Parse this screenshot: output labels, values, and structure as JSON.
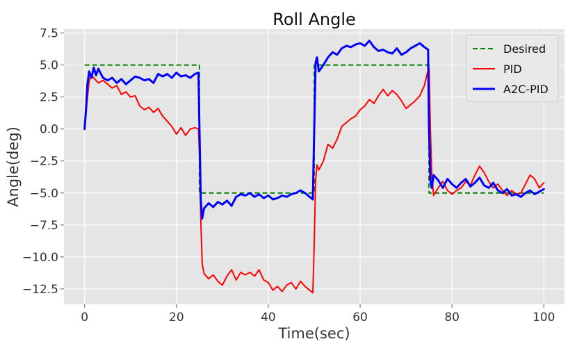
{
  "chart_data": {
    "type": "line",
    "title": "Roll Angle",
    "xlabel": "Time(sec)",
    "ylabel": "Angle(deg)",
    "xlim": [
      -4.5,
      104.5
    ],
    "ylim": [
      -13.7,
      7.8
    ],
    "xticks": [
      0,
      20,
      40,
      60,
      80,
      100
    ],
    "yticks": [
      7.5,
      5.0,
      2.5,
      0.0,
      -2.5,
      -5.0,
      -7.5,
      -10.0,
      -12.5
    ],
    "ytick_labels": [
      "7.5",
      "5.0",
      "2.5",
      "0.0",
      "−2.5",
      "−5.0",
      "−7.5",
      "−10.0",
      "−12.5"
    ],
    "grid": true,
    "legend_position": "top-right",
    "colors": {
      "background": "#e5e5e5",
      "grid": "#ffffff"
    },
    "series": [
      {
        "name": "Desired",
        "color": "#008000",
        "style": "dashed",
        "x": [
          0,
          25,
          25,
          50,
          50,
          75,
          75,
          100
        ],
        "y": [
          5,
          5,
          -5,
          -5,
          5,
          5,
          -5,
          -5
        ]
      },
      {
        "name": "PID",
        "color": "#ff0000",
        "style": "solid",
        "x": [
          0,
          0.5,
          1,
          1.5,
          2,
          3,
          4,
          5,
          6,
          7,
          8,
          9,
          10,
          11,
          12,
          13,
          14,
          15,
          16,
          17,
          18,
          19,
          20,
          21,
          22,
          23,
          24,
          24.8,
          25,
          25.3,
          25.6,
          26,
          27,
          28,
          29,
          30,
          31,
          32,
          33,
          34,
          35,
          36,
          37,
          38,
          39,
          40,
          41,
          42,
          43,
          44,
          45,
          46,
          47,
          48,
          49,
          49.7,
          50,
          50.3,
          50.6,
          51,
          52,
          53,
          54,
          55,
          56,
          57,
          58,
          59,
          60,
          61,
          62,
          63,
          64,
          65,
          66,
          67,
          68,
          69,
          70,
          71,
          72,
          73,
          74,
          74.8,
          75,
          75.3,
          75.6,
          76,
          77,
          78,
          79,
          80,
          81,
          82,
          83,
          84,
          85,
          86,
          87,
          88,
          89,
          90,
          91,
          92,
          93,
          94,
          95,
          96,
          97,
          98,
          99,
          100
        ],
        "y": [
          0,
          2.0,
          3.8,
          4.2,
          4.0,
          3.6,
          3.8,
          3.5,
          3.2,
          3.4,
          2.7,
          2.9,
          2.5,
          2.6,
          1.8,
          1.5,
          1.7,
          1.3,
          1.6,
          1.0,
          0.6,
          0.2,
          -0.4,
          0.1,
          -0.5,
          0.0,
          0.1,
          0.0,
          -2.0,
          -7.0,
          -10.5,
          -11.3,
          -11.7,
          -11.4,
          -11.9,
          -12.2,
          -11.5,
          -11.0,
          -11.8,
          -11.2,
          -11.4,
          -11.2,
          -11.5,
          -11.0,
          -11.8,
          -12.0,
          -12.6,
          -12.3,
          -12.7,
          -12.2,
          -12.0,
          -12.5,
          -11.9,
          -12.3,
          -12.6,
          -12.8,
          -9.0,
          -4.0,
          -2.8,
          -3.2,
          -2.5,
          -1.2,
          -1.5,
          -0.8,
          0.2,
          0.5,
          0.8,
          1.0,
          1.5,
          1.8,
          2.3,
          2.0,
          2.6,
          3.1,
          2.6,
          3.0,
          2.7,
          2.2,
          1.6,
          1.9,
          2.2,
          2.6,
          3.4,
          4.6,
          4.8,
          0.0,
          -3.5,
          -5.2,
          -4.6,
          -4.1,
          -4.8,
          -5.1,
          -4.8,
          -4.6,
          -4.1,
          -4.4,
          -3.6,
          -2.9,
          -3.4,
          -4.1,
          -4.6,
          -4.3,
          -4.8,
          -5.2,
          -4.8,
          -5.1,
          -5.0,
          -4.3,
          -3.6,
          -3.9,
          -4.6,
          -4.2
        ],
        "legend_label": "PID"
      },
      {
        "name": "A2C-PID",
        "color": "#0000ff",
        "style": "solid",
        "x": [
          0,
          0.3,
          0.6,
          1,
          1.5,
          2,
          2.5,
          3,
          4,
          5,
          6,
          7,
          8,
          9,
          10,
          11,
          12,
          13,
          14,
          15,
          16,
          17,
          18,
          19,
          20,
          21,
          22,
          23,
          24,
          24.8,
          25,
          25.3,
          25.6,
          26,
          27,
          28,
          29,
          30,
          31,
          32,
          33,
          34,
          35,
          36,
          37,
          38,
          39,
          40,
          41,
          42,
          43,
          44,
          45,
          46,
          47,
          48,
          49,
          49.7,
          50,
          50.3,
          50.6,
          51,
          52,
          53,
          54,
          55,
          56,
          57,
          58,
          59,
          60,
          61,
          62,
          63,
          64,
          65,
          66,
          67,
          68,
          69,
          70,
          71,
          72,
          73,
          74,
          74.8,
          75,
          75.3,
          75.6,
          76,
          77,
          78,
          79,
          80,
          81,
          82,
          83,
          84,
          85,
          86,
          87,
          88,
          89,
          90,
          91,
          92,
          93,
          94,
          95,
          96,
          97,
          98,
          99,
          100
        ],
        "y": [
          0,
          1.5,
          3.5,
          4.5,
          4.0,
          4.8,
          4.2,
          4.7,
          4.0,
          3.8,
          4.0,
          3.6,
          3.9,
          3.5,
          3.8,
          4.1,
          4.0,
          3.8,
          3.9,
          3.6,
          4.3,
          4.1,
          4.3,
          4.0,
          4.4,
          4.1,
          4.2,
          4.0,
          4.3,
          4.4,
          0.0,
          -5.5,
          -7.0,
          -6.2,
          -5.8,
          -6.1,
          -5.7,
          -5.9,
          -5.6,
          -6.0,
          -5.3,
          -5.1,
          -5.2,
          -5.0,
          -5.3,
          -5.1,
          -5.4,
          -5.2,
          -5.5,
          -5.4,
          -5.2,
          -5.3,
          -5.1,
          -5.0,
          -4.8,
          -5.0,
          -5.3,
          -5.5,
          0.0,
          5.2,
          5.6,
          4.5,
          5.0,
          5.6,
          6.0,
          5.8,
          6.3,
          6.5,
          6.4,
          6.6,
          6.7,
          6.5,
          6.9,
          6.4,
          6.1,
          6.2,
          6.0,
          5.9,
          6.3,
          5.8,
          6.0,
          6.3,
          6.5,
          6.7,
          6.4,
          6.2,
          0.0,
          -4.0,
          -4.6,
          -3.6,
          -4.0,
          -4.6,
          -3.9,
          -4.3,
          -4.6,
          -4.2,
          -3.9,
          -4.5,
          -4.2,
          -3.8,
          -4.4,
          -4.6,
          -4.2,
          -4.8,
          -5.0,
          -4.7,
          -5.2,
          -5.1,
          -5.3,
          -5.0,
          -4.8,
          -5.1,
          -4.9,
          -4.7
        ],
        "legend_label": "A2C-PID"
      }
    ]
  }
}
